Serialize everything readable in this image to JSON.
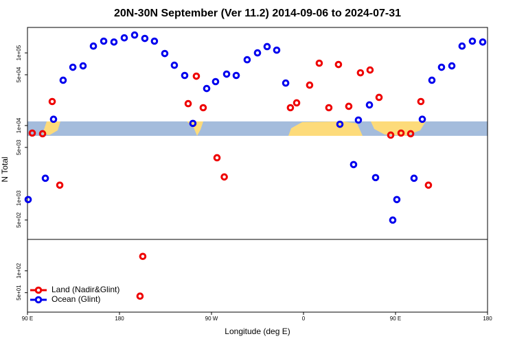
{
  "chart_data": {
    "type": "scatter",
    "title": "20N-30N September (Ver 11.2)   2014-09-06 to 2024-07-31",
    "xlabel": "Longitude (deg E)",
    "ylabel": "N Total",
    "xlim": [
      90,
      540
    ],
    "xticks": [
      {
        "value": 90,
        "label": "90 E"
      },
      180,
      {
        "value": 270,
        "label": "90 W"
      },
      {
        "value": 360,
        "label": "0"
      },
      {
        "value": 450,
        "label": "90 E"
      },
      {
        "value": 540,
        "label": "180"
      }
    ],
    "ylim": [
      27,
      224000
    ],
    "ylog": true,
    "yticks": [
      {
        "value": 100000,
        "label": "1e+05"
      },
      {
        "value": 50000,
        "label": "5e+04"
      },
      {
        "value": 10000,
        "label": "1e+04"
      },
      {
        "value": 5000,
        "label": "5e+03"
      },
      {
        "value": 1000,
        "label": "1e+03"
      },
      {
        "value": 500,
        "label": "5e+02"
      },
      {
        "value": 100,
        "label": "1e+02"
      },
      {
        "value": 50,
        "label": "5e+01"
      }
    ],
    "legend": "bottom-left",
    "series": [
      {
        "name": "Land (Nadir&Glint)",
        "color": "#ee0000",
        "x": [
          94.7,
          104.8,
          114.2,
          121.6,
          200.1,
          202.8,
          247.2,
          255.2,
          261.9,
          275.4,
          282.5,
          347.2,
          353.3,
          366.0,
          375.4,
          384.8,
          394.2,
          404.3,
          415.7,
          425.1,
          433.9,
          445.3,
          455.4,
          464.8,
          474.8,
          482.2
        ],
        "values": [
          7870,
          7710,
          21400,
          1510,
          44.8,
          158,
          20000,
          47800,
          17600,
          3600,
          1960,
          17600,
          20500,
          36000,
          72100,
          17600,
          69200,
          18400,
          53200,
          58100,
          24400,
          7380,
          7870,
          7710,
          21400,
          1510
        ]
      },
      {
        "name": "Ocean (Glint)",
        "color": "#0000ee",
        "x": [
          90.7,
          107.5,
          115.5,
          124.9,
          134.4,
          144.4,
          154.5,
          164.6,
          174.6,
          184.7,
          194.8,
          204.8,
          214.2,
          224.3,
          233.7,
          243.8,
          251.8,
          265.3,
          274.0,
          284.8,
          294.2,
          304.9,
          315.0,
          324.4,
          333.8,
          342.6,
          395.6,
          409.0,
          413.7,
          424.5,
          430.5,
          447.3,
          451.3,
          468.1,
          476.2,
          485.6,
          495.0,
          505.1,
          515.1,
          525.2,
          535.3
        ],
        "values": [
          957,
          1880,
          12200,
          42000,
          63400,
          66200,
          124000,
          145000,
          141000,
          161000,
          176000,
          158000,
          145000,
          98000,
          67600,
          48900,
          10700,
          32300,
          40200,
          51000,
          48900,
          80500,
          100000,
          122000,
          109000,
          38400,
          10400,
          2900,
          11900,
          19200,
          1920,
          499,
          957,
          1880,
          12200,
          42000,
          63400,
          66200,
          124000,
          145000,
          141000
        ]
      }
    ]
  }
}
